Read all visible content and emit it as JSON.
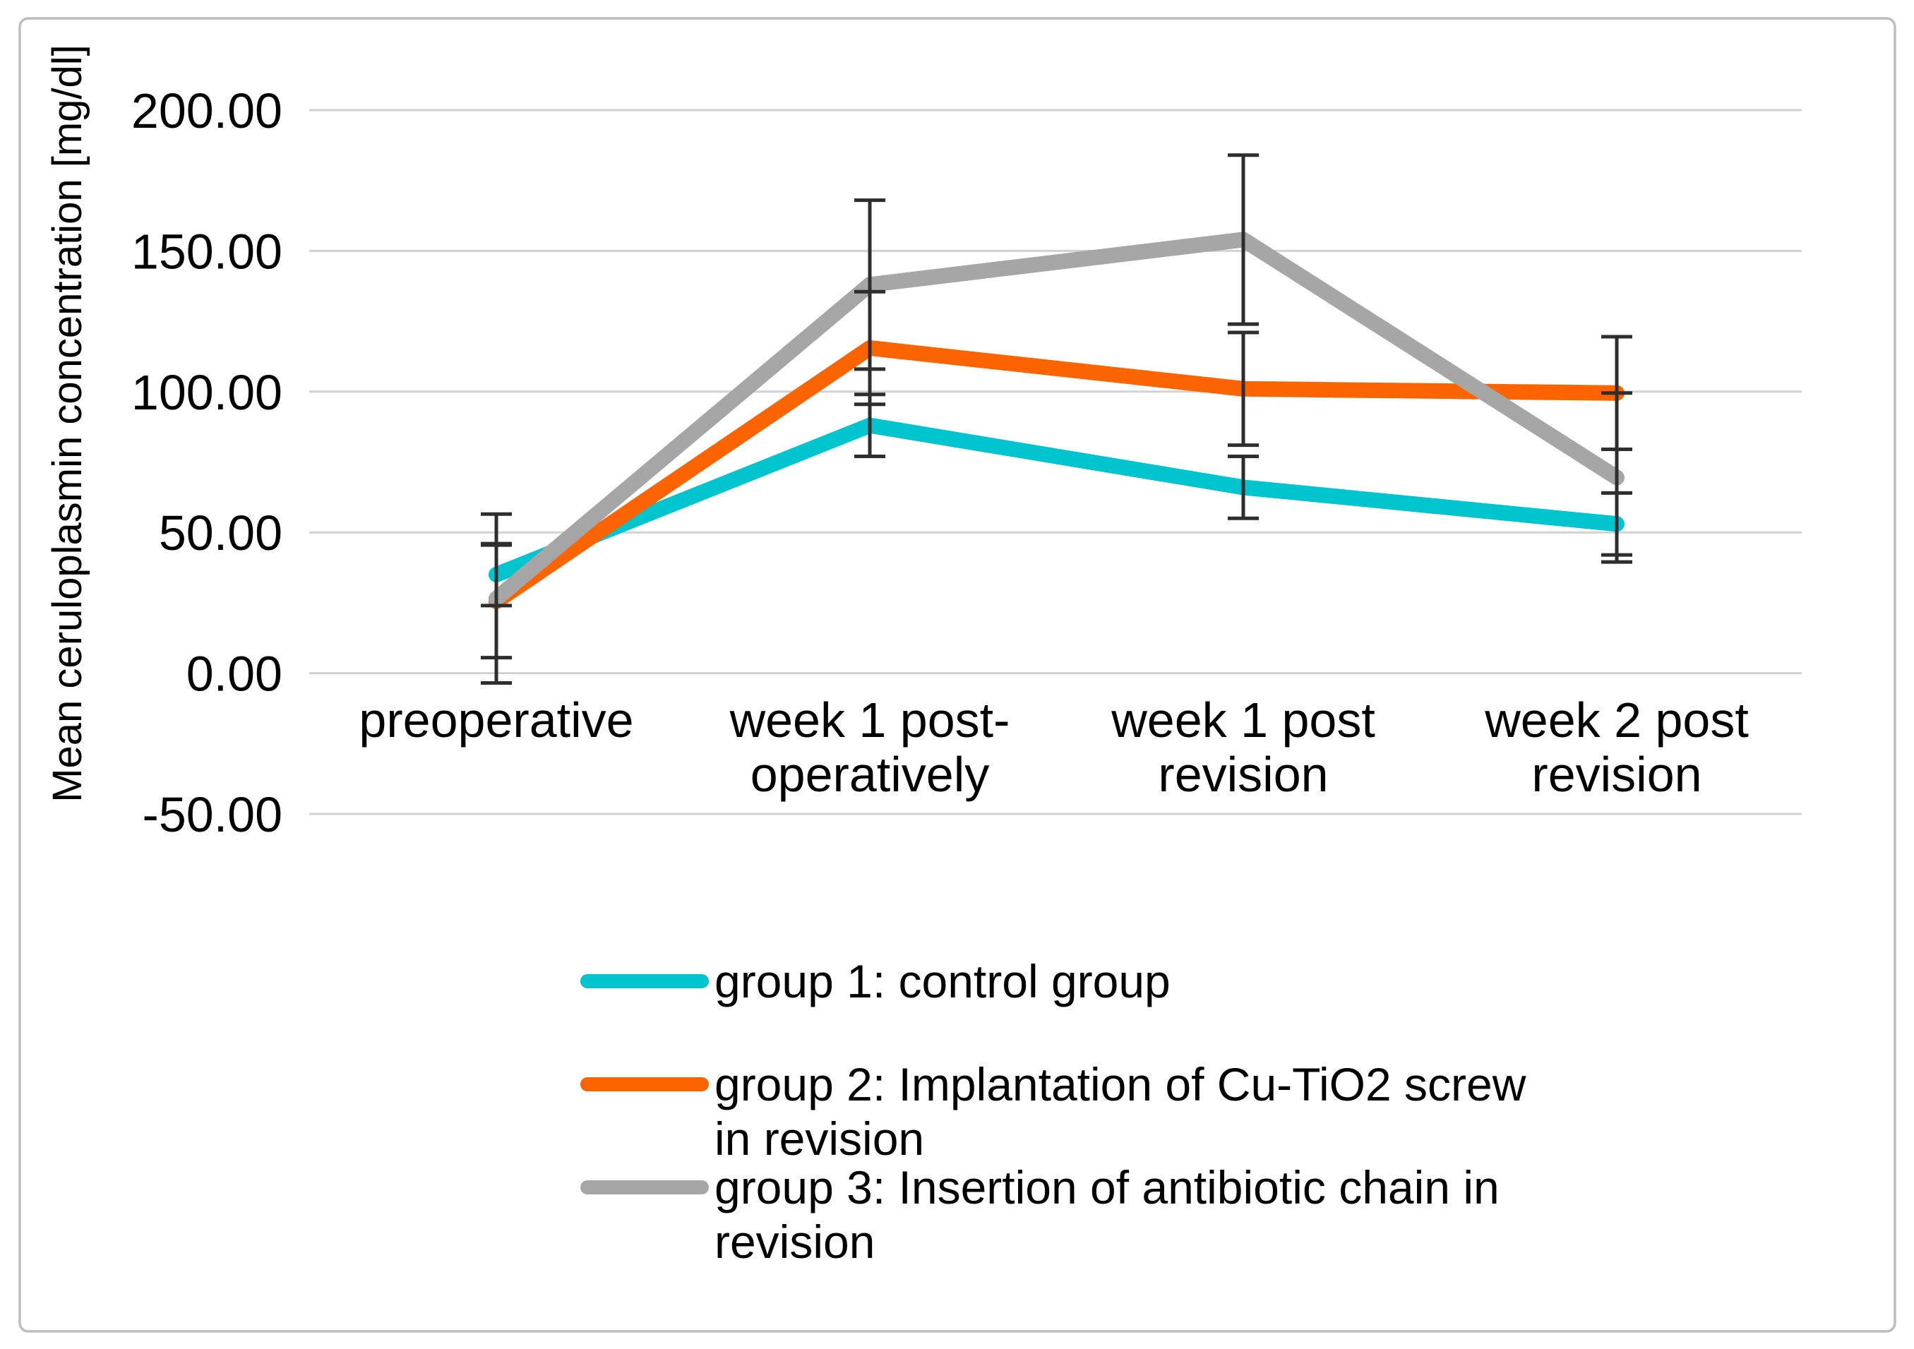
{
  "figure": {
    "background_color": "#FFFFFF",
    "border_color": "#BEBEBE"
  },
  "chart_data": {
    "type": "line",
    "title": "",
    "xlabel": "",
    "ylabel": "Mean ceruloplasmin concentration [mg/dl]",
    "ylim": [
      -50,
      200
    ],
    "grid": "horizontal-only",
    "legend_position": "bottom",
    "yticks": [
      200,
      150,
      100,
      50,
      0,
      -50
    ],
    "ytick_labels": [
      "200.00",
      "150.00",
      "100.00",
      "50.00",
      "0.00",
      "-50.00"
    ],
    "categories": [
      "preoperative",
      "week 1 post-operatively",
      "week 1 post revision",
      "week 2 post revision"
    ],
    "category_label_lines": [
      [
        "preoperative"
      ],
      [
        "week 1 post-",
        "operatively"
      ],
      [
        "week 1 post",
        "revision"
      ],
      [
        "week 2 post",
        "revision"
      ]
    ],
    "series": [
      {
        "name": "group 1: control group",
        "legend_lines": [
          "group 1: control group"
        ],
        "color": "#00C4CE",
        "values": [
          35,
          88,
          66,
          53
        ],
        "error": [
          11,
          11,
          11,
          11
        ]
      },
      {
        "name": "group 2: Implantation of Cu-TiO2 screw in revision",
        "legend_lines": [
          "group 2: Implantation of Cu-TiO2 screw",
          "in revision"
        ],
        "color": "#FB6400",
        "values": [
          25.5,
          115.5,
          101,
          99.5
        ],
        "error": [
          20,
          20,
          20,
          20
        ]
      },
      {
        "name": "group 3: Insertion of antibiotic chain in revision",
        "legend_lines": [
          "group 3: Insertion of antibiotic chain in",
          "revision"
        ],
        "color": "#A6A6A6",
        "values": [
          26.5,
          138,
          154,
          69.5
        ],
        "error": [
          30,
          30,
          30,
          30
        ]
      }
    ],
    "gridline_color": "#D2D2D2",
    "error_bar_color": "#2E2E2E",
    "text_color": "#000000"
  }
}
